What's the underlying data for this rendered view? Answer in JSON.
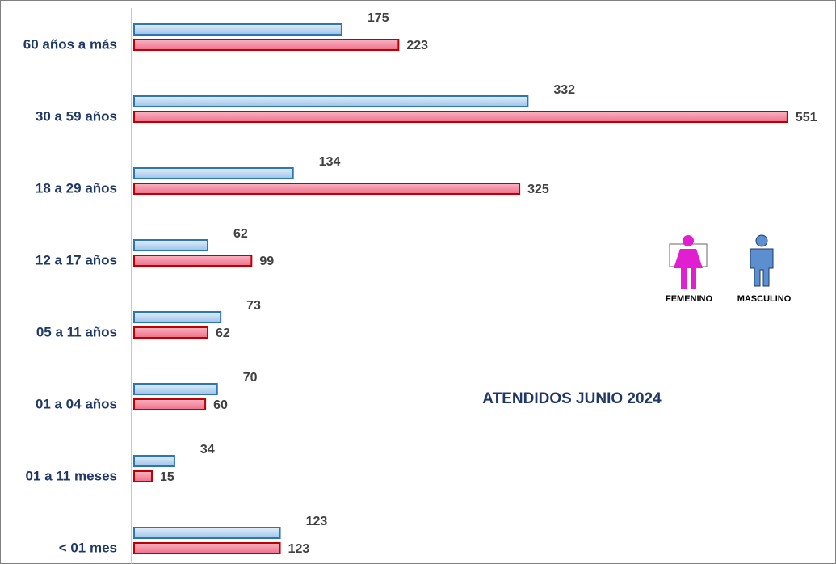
{
  "chart_data": {
    "type": "hbar",
    "title": "ATENDIDOS JUNIO 2024",
    "categories": [
      "60 años a más",
      "30 a 59 años",
      "18 a 29 años",
      "12 a 17 años",
      "05 a 11 años",
      "01 a 04 años",
      "01 a 11 meses",
      "< 01 mes"
    ],
    "series": [
      {
        "name": "MASCULINO",
        "color": "#2e75b6",
        "values": [
          175,
          332,
          134,
          62,
          73,
          70,
          34,
          123
        ]
      },
      {
        "name": "FEMENINO",
        "color": "#c00000",
        "values": [
          223,
          551,
          325,
          99,
          62,
          60,
          15,
          123
        ]
      }
    ]
  }
}
